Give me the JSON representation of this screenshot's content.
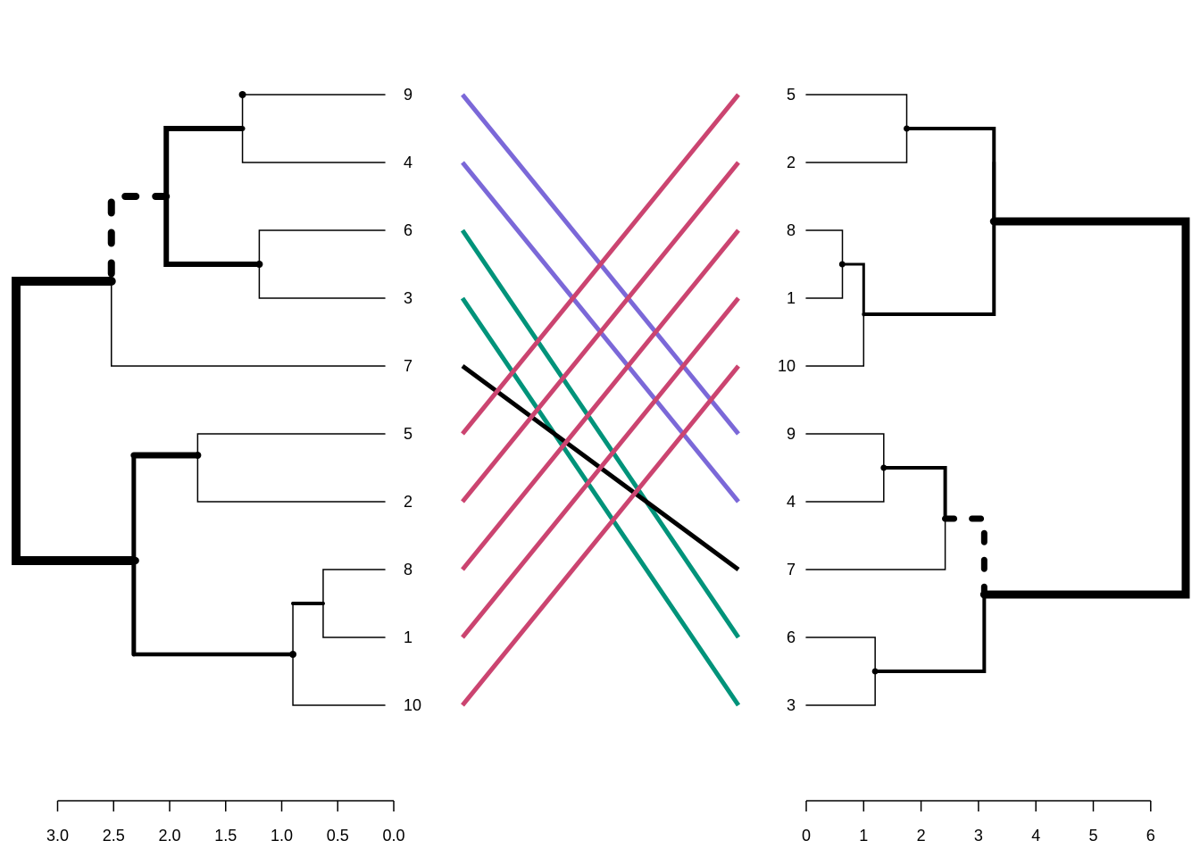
{
  "left_tree": {
    "leaves": [
      "9",
      "4",
      "6",
      "3",
      "7",
      "5",
      "2",
      "8",
      "1",
      "10"
    ],
    "axis": {
      "min": 0,
      "max": 3.0,
      "ticks": [
        3.0,
        2.5,
        2.0,
        1.5,
        1.0,
        0.5,
        0.0
      ],
      "tick_labels": [
        "3.0",
        "2.5",
        "2.0",
        "1.5",
        "1.0",
        "0.5",
        "0.0"
      ]
    },
    "merge_heights": {
      "9_4": 1.35,
      "6_3": 1.2,
      "94_63": 2.03,
      "9463_7": 2.52,
      "5_2": 1.75,
      "8_1": 0.63,
      "81_10": 0.9,
      "52_8110": 2.32,
      "root": 3.4
    }
  },
  "right_tree": {
    "leaves": [
      "5",
      "2",
      "8",
      "1",
      "10",
      "9",
      "4",
      "7",
      "6",
      "3"
    ],
    "axis": {
      "min": 0,
      "max": 6,
      "ticks": [
        0,
        1,
        2,
        3,
        4,
        5,
        6
      ],
      "tick_labels": [
        "0",
        "1",
        "2",
        "3",
        "4",
        "5",
        "6"
      ]
    },
    "merge_heights": {
      "5_2": 1.75,
      "8_1": 0.63,
      "81_10": 1.0,
      "52_8110": 3.27,
      "9_4": 1.35,
      "94_7": 2.42,
      "6_3": 1.2,
      "947_63": 3.1,
      "root": 6.6
    }
  },
  "connections": [
    {
      "label": "9",
      "color": "#7B68D8"
    },
    {
      "label": "4",
      "color": "#7B68D8"
    },
    {
      "label": "6",
      "color": "#00937A"
    },
    {
      "label": "3",
      "color": "#00937A"
    },
    {
      "label": "7",
      "color": "#000000"
    },
    {
      "label": "5",
      "color": "#CB4470"
    },
    {
      "label": "2",
      "color": "#CB4470"
    },
    {
      "label": "8",
      "color": "#CB4470"
    },
    {
      "label": "1",
      "color": "#CB4470"
    },
    {
      "label": "10",
      "color": "#CB4470"
    }
  ]
}
